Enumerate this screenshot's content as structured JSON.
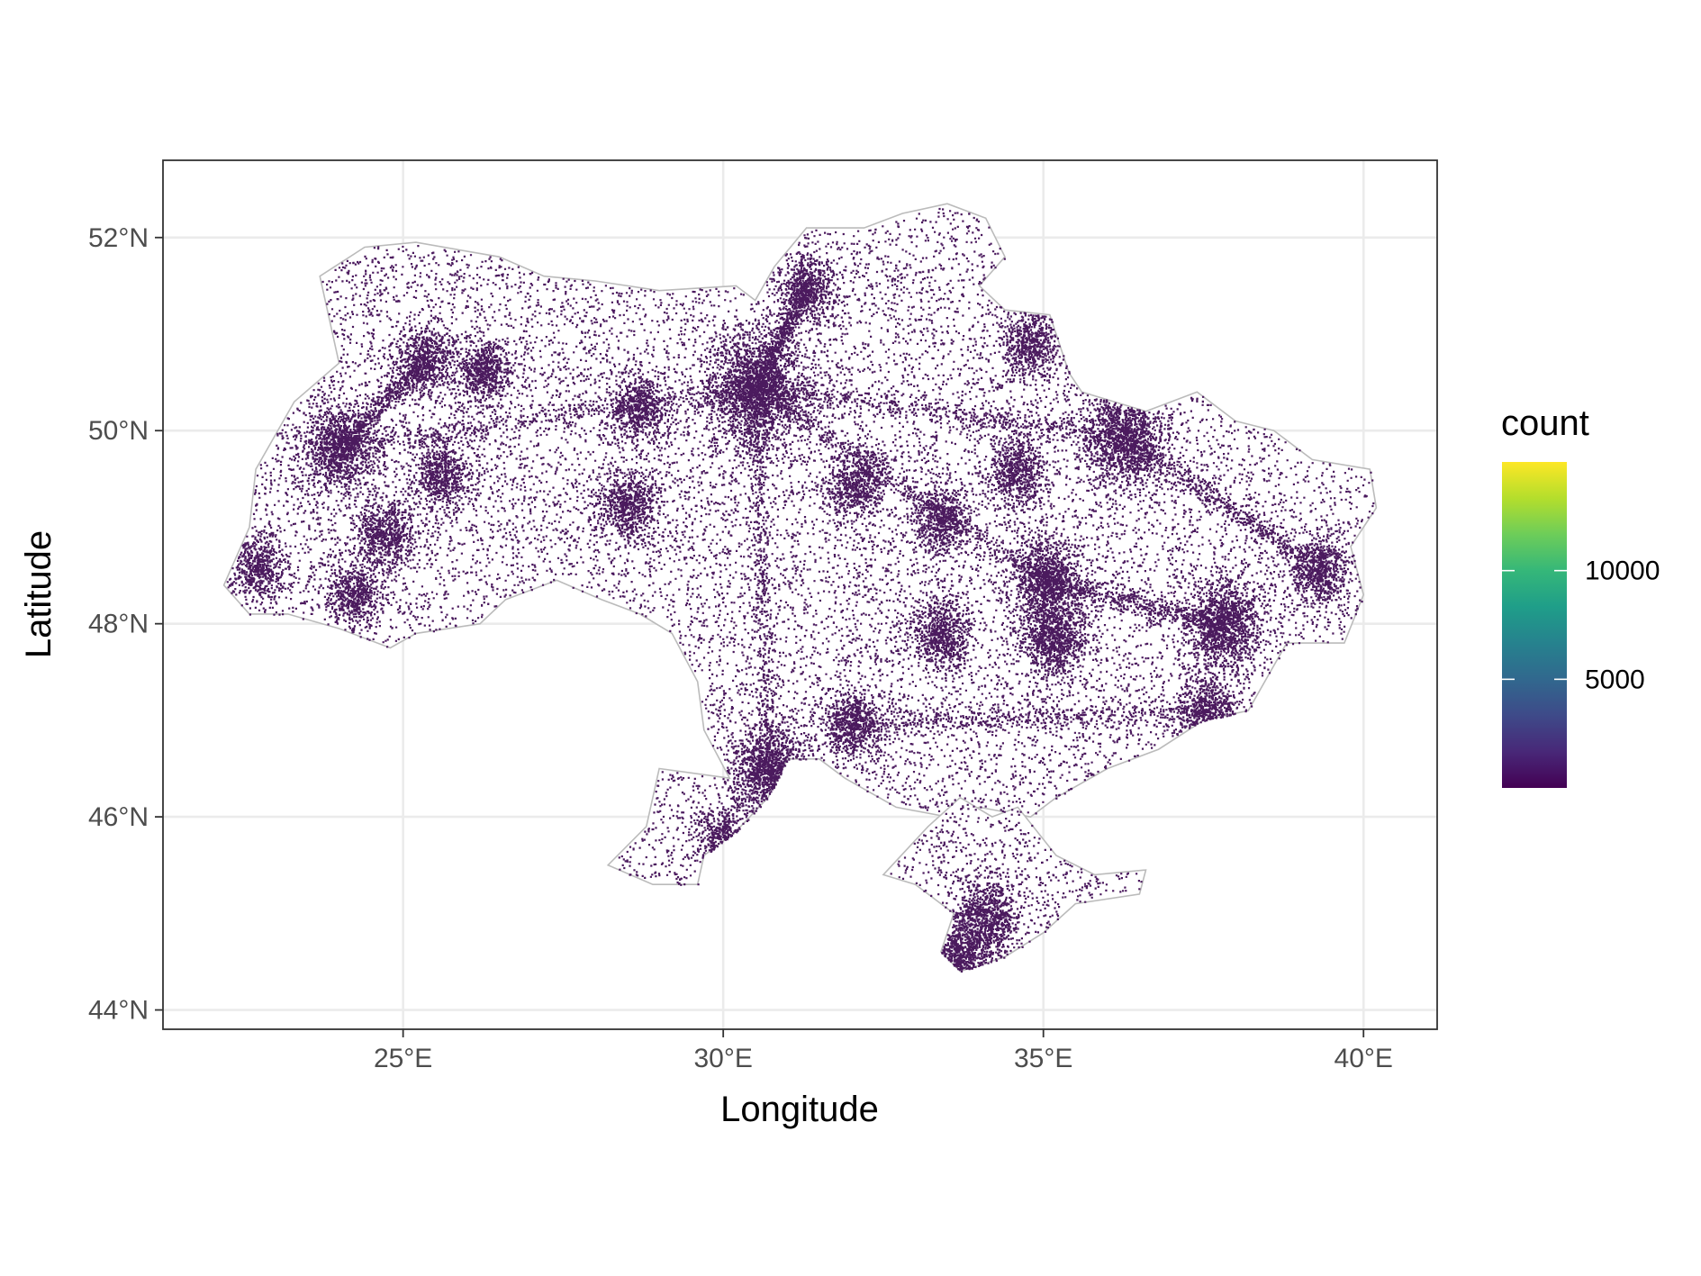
{
  "chart_data": {
    "type": "heatmap",
    "subtype": "hexbin point-density map",
    "xlabel": "Longitude",
    "ylabel": "Latitude",
    "xlim": [
      21.25,
      41.15
    ],
    "ylim": [
      43.8,
      52.8
    ],
    "x_ticks": [
      {
        "value": 25,
        "label": "25°E"
      },
      {
        "value": 30,
        "label": "30°E"
      },
      {
        "value": 35,
        "label": "35°E"
      },
      {
        "value": 40,
        "label": "40°E"
      }
    ],
    "y_ticks": [
      {
        "value": 44,
        "label": "44°N"
      },
      {
        "value": 46,
        "label": "46°N"
      },
      {
        "value": 48,
        "label": "48°N"
      },
      {
        "value": 50,
        "label": "50°N"
      },
      {
        "value": 52,
        "label": "52°N"
      }
    ],
    "grid": true,
    "legend": {
      "title": "count",
      "position": "right",
      "colormap": "viridis",
      "range": [
        1,
        15000
      ],
      "ticks": [
        {
          "value": 5000,
          "label": "5000"
        },
        {
          "value": 10000,
          "label": "10000"
        }
      ],
      "colors": [
        "#440154",
        "#482878",
        "#3E4A89",
        "#31688E",
        "#26828E",
        "#1F9E89",
        "#35B779",
        "#6DCD59",
        "#B4DE2C",
        "#FDE725"
      ]
    },
    "mark_color": "#4B1A5E",
    "outline_color": "#BBBBBB",
    "region_outline": [
      [
        22.2,
        48.4
      ],
      [
        22.6,
        49.0
      ],
      [
        22.7,
        49.6
      ],
      [
        23.3,
        50.3
      ],
      [
        24.0,
        50.7
      ],
      [
        23.8,
        51.3
      ],
      [
        23.7,
        51.6
      ],
      [
        24.4,
        51.9
      ],
      [
        25.2,
        51.95
      ],
      [
        26.5,
        51.8
      ],
      [
        27.2,
        51.6
      ],
      [
        28.0,
        51.55
      ],
      [
        29.0,
        51.45
      ],
      [
        30.2,
        51.5
      ],
      [
        30.5,
        51.35
      ],
      [
        30.8,
        51.7
      ],
      [
        31.3,
        52.1
      ],
      [
        32.2,
        52.1
      ],
      [
        32.8,
        52.25
      ],
      [
        33.5,
        52.35
      ],
      [
        34.1,
        52.2
      ],
      [
        34.4,
        51.8
      ],
      [
        34.0,
        51.5
      ],
      [
        34.4,
        51.25
      ],
      [
        35.1,
        51.2
      ],
      [
        35.4,
        50.6
      ],
      [
        35.6,
        50.4
      ],
      [
        36.6,
        50.2
      ],
      [
        37.4,
        50.4
      ],
      [
        38.0,
        50.1
      ],
      [
        38.6,
        50.0
      ],
      [
        39.2,
        49.7
      ],
      [
        40.1,
        49.6
      ],
      [
        40.2,
        49.2
      ],
      [
        39.8,
        48.8
      ],
      [
        40.0,
        48.3
      ],
      [
        39.7,
        47.8
      ],
      [
        38.8,
        47.8
      ],
      [
        38.2,
        47.1
      ],
      [
        37.5,
        47.0
      ],
      [
        36.8,
        46.7
      ],
      [
        36.0,
        46.5
      ],
      [
        35.2,
        46.2
      ],
      [
        34.8,
        46.0
      ],
      [
        34.0,
        46.1
      ],
      [
        33.5,
        46.0
      ],
      [
        32.7,
        46.1
      ],
      [
        31.9,
        46.4
      ],
      [
        31.5,
        46.6
      ],
      [
        31.0,
        46.6
      ],
      [
        30.7,
        46.2
      ],
      [
        30.2,
        45.85
      ],
      [
        29.7,
        45.6
      ],
      [
        29.6,
        45.3
      ],
      [
        28.9,
        45.3
      ],
      [
        28.2,
        45.5
      ],
      [
        28.8,
        45.9
      ],
      [
        29.0,
        46.5
      ],
      [
        30.1,
        46.4
      ],
      [
        29.7,
        46.9
      ],
      [
        29.6,
        47.4
      ],
      [
        29.2,
        47.9
      ],
      [
        28.7,
        48.1
      ],
      [
        28.1,
        48.25
      ],
      [
        27.4,
        48.45
      ],
      [
        26.6,
        48.25
      ],
      [
        26.2,
        48.0
      ],
      [
        25.2,
        47.9
      ],
      [
        24.8,
        47.75
      ],
      [
        24.0,
        47.95
      ],
      [
        23.2,
        48.1
      ],
      [
        22.6,
        48.1
      ],
      [
        22.2,
        48.4
      ]
    ],
    "crimea_outline": [
      [
        32.5,
        45.4
      ],
      [
        33.2,
        45.9
      ],
      [
        33.7,
        46.2
      ],
      [
        34.2,
        46.0
      ],
      [
        34.6,
        46.1
      ],
      [
        35.2,
        45.6
      ],
      [
        35.8,
        45.4
      ],
      [
        36.6,
        45.45
      ],
      [
        36.5,
        45.2
      ],
      [
        35.5,
        45.1
      ],
      [
        35.0,
        44.8
      ],
      [
        34.4,
        44.55
      ],
      [
        33.7,
        44.4
      ],
      [
        33.4,
        44.6
      ],
      [
        33.6,
        45.0
      ],
      [
        33.0,
        45.3
      ],
      [
        32.5,
        45.4
      ]
    ],
    "density_hotspots": [
      {
        "lon": 30.5,
        "lat": 50.45,
        "weight": 3.0
      },
      {
        "lon": 36.25,
        "lat": 49.95,
        "weight": 2.0
      },
      {
        "lon": 24.0,
        "lat": 49.83,
        "weight": 1.6
      },
      {
        "lon": 35.05,
        "lat": 48.45,
        "weight": 1.6
      },
      {
        "lon": 37.8,
        "lat": 48.0,
        "weight": 1.8
      },
      {
        "lon": 30.7,
        "lat": 46.48,
        "weight": 1.8
      },
      {
        "lon": 33.6,
        "lat": 44.55,
        "weight": 1.5
      },
      {
        "lon": 34.1,
        "lat": 44.95,
        "weight": 1.2
      },
      {
        "lon": 35.15,
        "lat": 47.85,
        "weight": 1.3
      },
      {
        "lon": 32.0,
        "lat": 46.97,
        "weight": 1.0
      },
      {
        "lon": 28.5,
        "lat": 49.23,
        "weight": 1.0
      },
      {
        "lon": 24.7,
        "lat": 48.92,
        "weight": 1.0
      },
      {
        "lon": 25.6,
        "lat": 49.55,
        "weight": 0.9
      },
      {
        "lon": 26.25,
        "lat": 50.62,
        "weight": 0.9
      },
      {
        "lon": 25.33,
        "lat": 50.75,
        "weight": 0.9
      },
      {
        "lon": 28.66,
        "lat": 50.25,
        "weight": 0.9
      },
      {
        "lon": 32.05,
        "lat": 49.45,
        "weight": 0.9
      },
      {
        "lon": 34.55,
        "lat": 49.59,
        "weight": 0.9
      },
      {
        "lon": 33.4,
        "lat": 49.07,
        "weight": 0.9
      },
      {
        "lon": 31.3,
        "lat": 51.5,
        "weight": 0.9
      },
      {
        "lon": 34.8,
        "lat": 50.9,
        "weight": 0.9
      },
      {
        "lon": 39.3,
        "lat": 48.57,
        "weight": 1.0
      },
      {
        "lon": 37.55,
        "lat": 47.1,
        "weight": 1.0
      },
      {
        "lon": 33.4,
        "lat": 47.9,
        "weight": 1.0
      },
      {
        "lon": 24.2,
        "lat": 48.3,
        "weight": 0.8
      },
      {
        "lon": 22.7,
        "lat": 48.6,
        "weight": 0.8
      },
      {
        "lon": 30.0,
        "lat": 45.8,
        "weight": 0.7
      }
    ]
  }
}
